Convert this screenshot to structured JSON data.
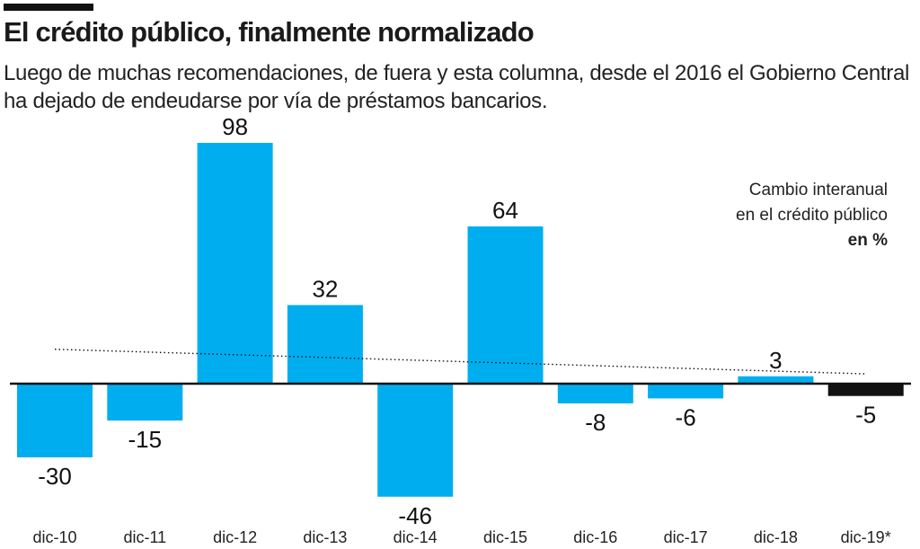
{
  "header": {
    "title": "El crédito público, finalmente normalizado",
    "subtitle": "Luego de muchas recomendaciones, de fuera y esta columna, desde el 2016 el Gobierno Central ha dejado de endeudarse por vía de préstamos bancarios."
  },
  "legend_note": {
    "line1": "Cambio interanual",
    "line2": "en el crédito público",
    "unit": "en %"
  },
  "colors": {
    "bar": "#00aeef",
    "highlight_bar": "#111111",
    "baseline": "#111111",
    "trendline": "#111111"
  },
  "chart_data": {
    "type": "bar",
    "categories": [
      "dic-10",
      "dic-11",
      "dic-12",
      "dic-13",
      "dic-14",
      "dic-15",
      "dic-16",
      "dic-17",
      "dic-18",
      "dic-19*"
    ],
    "values": [
      -30,
      -15,
      98,
      32,
      -46,
      64,
      -8,
      -6,
      3,
      -5
    ],
    "labels": [
      "-30",
      "-15",
      "98",
      "32",
      "-46",
      "64",
      "-8",
      "-6",
      "3",
      "-5"
    ],
    "highlight": "dic-19*",
    "ylim": [
      -46,
      98
    ],
    "trendline": {
      "start": 14,
      "end": 4,
      "style": "dotted"
    },
    "grid": false,
    "legend_position": "top-right"
  }
}
